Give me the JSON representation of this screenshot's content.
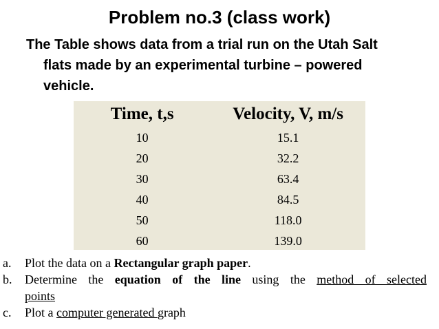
{
  "title": "Problem no.3 (class work)",
  "intro": {
    "line1": "The Table shows data from a trial run on the Utah Salt",
    "line2": "flats made by an experimental turbine – powered",
    "line3": "vehicle."
  },
  "table": {
    "headers": [
      "Time, t,s",
      "Velocity, V, m/s"
    ],
    "rows": [
      [
        "10",
        "15.1"
      ],
      [
        "20",
        "32.2"
      ],
      [
        "30",
        "63.4"
      ],
      [
        "40",
        "84.5"
      ],
      [
        "50",
        "118.0"
      ],
      [
        "60",
        "139.0"
      ]
    ],
    "background": "#ebe8d9"
  },
  "tasks": [
    {
      "letter": "a.",
      "text_pre": "Plot the data on a ",
      "text_bold": "Rectangular graph paper",
      "text_post": "."
    },
    {
      "letter": "b.",
      "text_pre": "Determine the ",
      "text_bold": "equation of the line",
      "text_mid": " using the ",
      "text_underline": "method of selected",
      "text_underline_2": "points"
    },
    {
      "letter": "c.",
      "text_pre": "Plot a ",
      "text_underline": "computer generated ",
      "text_post": "graph"
    }
  ]
}
